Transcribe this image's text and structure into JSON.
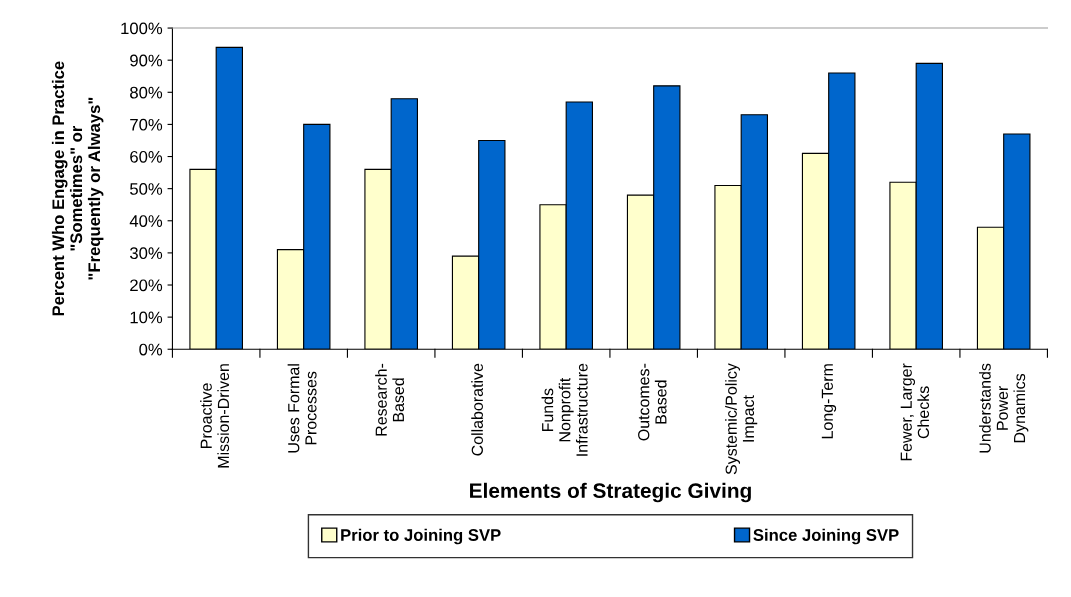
{
  "chart_data": {
    "type": "bar",
    "xlabel": "Elements of Strategic Giving",
    "ylabel": "Percent Who Engage in Practice\n\"Sometimes\" or\n\"Frequently or Always\"",
    "categories": [
      "Proactive\nMission-Driven",
      "Uses Formal\nProcesses",
      "Research-\nBased",
      "Collaborative",
      "Funds\nNonprofit\nInfrastructure",
      "Outcomes-\nBased",
      "Systemic/Policy\nImpact",
      "Long-Term",
      "Fewer, Larger\nChecks",
      "Understands\nPower\nDynamics"
    ],
    "series": [
      {
        "name": "Prior to Joining SVP",
        "color": "#ffffcc",
        "values": [
          56,
          31,
          56,
          29,
          45,
          48,
          51,
          61,
          52,
          38
        ]
      },
      {
        "name": "Since Joining SVP",
        "color": "#0066cc",
        "values": [
          94,
          70,
          78,
          65,
          77,
          82,
          73,
          86,
          89,
          67
        ]
      }
    ],
    "ylim": [
      0,
      100
    ],
    "yticks": [
      {
        "value": 0,
        "label": "0%"
      },
      {
        "value": 10,
        "label": "10%"
      },
      {
        "value": 20,
        "label": "20%"
      },
      {
        "value": 30,
        "label": "30%"
      },
      {
        "value": 40,
        "label": "40%"
      },
      {
        "value": 50,
        "label": "50%"
      },
      {
        "value": 60,
        "label": "60%"
      },
      {
        "value": 70,
        "label": "70%"
      },
      {
        "value": 80,
        "label": "80%"
      },
      {
        "value": 90,
        "label": "90%"
      },
      {
        "value": 100,
        "label": "100%"
      }
    ],
    "grid": false,
    "legend": "bottom"
  }
}
